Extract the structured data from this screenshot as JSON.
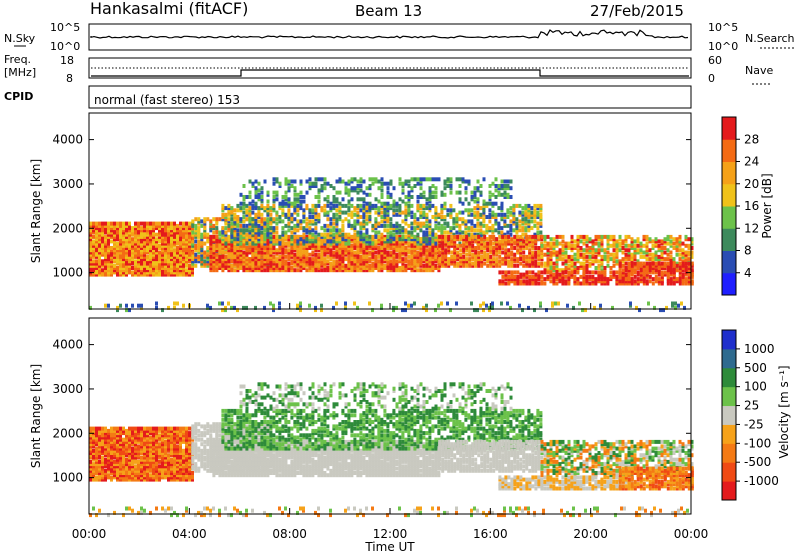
{
  "header": {
    "station": "Hankasalmi (fitACF)",
    "beam": "Beam 13",
    "date": "27/Feb/2015"
  },
  "noise_panel": {
    "left_label": "N.Sky",
    "right_label": "N.Search",
    "left_ticks": [
      "10^5",
      "10^0"
    ],
    "right_ticks": [
      "10^5",
      "10^0"
    ]
  },
  "freq_panel": {
    "left_label_1": "Freq.",
    "left_label_2": "[MHz]",
    "left_ticks": [
      "18",
      "8"
    ],
    "right_label": "Nave",
    "right_ticks": [
      "60",
      "0"
    ]
  },
  "cpid": {
    "label": "CPID",
    "program": "normal (fast stereo) 153"
  },
  "chart_data": [
    {
      "type": "heatmap",
      "title": "",
      "ylabel": "Slant Range [km]",
      "xlabel": "",
      "ylim": [
        180,
        4600
      ],
      "yticks": [
        "1000",
        "2000",
        "3000",
        "4000"
      ],
      "colorbar": {
        "label": "Power [dB]",
        "tick_labels": [
          "4",
          "8",
          "12",
          "16",
          "20",
          "24",
          "28"
        ],
        "range": [
          0,
          32
        ],
        "colors": [
          "#1f1fff",
          "#2a4db3",
          "#3d8a5c",
          "#6cc24a",
          "#f0c21a",
          "#f5a118",
          "#f46b14",
          "#e41a1c"
        ]
      }
    },
    {
      "type": "heatmap",
      "title": "",
      "ylabel": "Slant Range [km]",
      "xlabel": "Time UT",
      "ylim": [
        180,
        4600
      ],
      "yticks": [
        "1000",
        "2000",
        "3000",
        "4000"
      ],
      "xticks": [
        "00:00",
        "04:00",
        "08:00",
        "12:00",
        "16:00",
        "20:00",
        "00:00"
      ],
      "colorbar": {
        "label": "Velocity [m s⁻¹]",
        "tick_labels": [
          "1000",
          "500",
          "100",
          "25",
          "-25",
          "-100",
          "-500",
          "-1000"
        ],
        "colors": [
          "#1f2fcc",
          "#2f6b8f",
          "#2e8b3a",
          "#6cc24a",
          "#c9c9c0",
          "#f6a21a",
          "#f47a14",
          "#f04a14",
          "#e41a1c"
        ]
      }
    }
  ]
}
